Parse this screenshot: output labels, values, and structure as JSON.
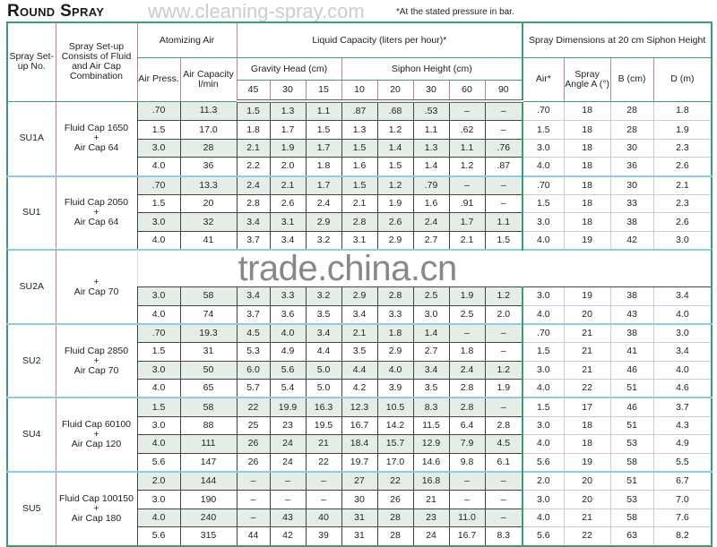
{
  "title": "Round Spray",
  "watermark_top": "www.cleaning-spray.com",
  "watermark_band": "trade.china.cn",
  "note": "*At the stated pressure in bar.",
  "headers": {
    "setup_no": "Spray Set-up No.",
    "combination": "Spray Set-up Consists of Fluid and Air Cap Combination",
    "atomizing_air": "Atomizing Air",
    "liquid_capacity": "Liquid Capacity (liters per hour)*",
    "spray_dimensions": "Spray Dimensions at 20 cm Siphon Height",
    "air_press": "Air Press.",
    "air_capacity": "Air Capacity l/min",
    "gravity_head": "Gravity Head (cm)",
    "siphon_height": "Siphon Height (cm)",
    "air": "Air*",
    "spray_angle": "Spray Angle A (°)",
    "b": "B (cm)",
    "d": "D (m)",
    "gravity_cols": [
      "45",
      "30",
      "15"
    ],
    "siphon_cols": [
      "10",
      "20",
      "30",
      "60",
      "90"
    ]
  },
  "groups": [
    {
      "id": "SU1A",
      "combo": [
        "Fluid Cap 1650",
        "+",
        "Air Cap 64"
      ],
      "rows": [
        [
          ".70",
          "11.3",
          "1.5",
          "1.3",
          "1.1",
          ".87",
          ".68",
          ".53",
          "–",
          "–",
          ".70",
          "18",
          "28",
          "1.8"
        ],
        [
          "1.5",
          "17.0",
          "1.8",
          "1.7",
          "1.5",
          "1.3",
          "1.2",
          "1.1",
          ".62",
          "–",
          "1.5",
          "18",
          "28",
          "1.9"
        ],
        [
          "3.0",
          "28",
          "2.1",
          "1.9",
          "1.7",
          "1.5",
          "1.4",
          "1.3",
          "1.1",
          ".76",
          "3.0",
          "18",
          "30",
          "2.3"
        ],
        [
          "4.0",
          "36",
          "2.2",
          "2.0",
          "1.8",
          "1.6",
          "1.5",
          "1.4",
          "1.2",
          ".87",
          "4.0",
          "18",
          "36",
          "2.6"
        ]
      ]
    },
    {
      "id": "SU1",
      "combo": [
        "Fluid Cap 2050",
        "+",
        "Air Cap 64"
      ],
      "rows": [
        [
          ".70",
          "13.3",
          "2.4",
          "2.1",
          "1.7",
          "1.5",
          "1.2",
          ".79",
          "–",
          "–",
          ".70",
          "18",
          "30",
          "2.1"
        ],
        [
          "1.5",
          "20",
          "2.8",
          "2.6",
          "2.4",
          "2.1",
          "1.9",
          "1.6",
          ".91",
          "–",
          "1.5",
          "18",
          "33",
          "2.3"
        ],
        [
          "3.0",
          "32",
          "3.4",
          "3.1",
          "2.9",
          "2.8",
          "2.6",
          "2.4",
          "1.7",
          "1.1",
          "3.0",
          "18",
          "38",
          "2.6"
        ],
        [
          "4.0",
          "41",
          "3.7",
          "3.4",
          "3.2",
          "3.1",
          "2.9",
          "2.7",
          "2.1",
          "1.5",
          "4.0",
          "19",
          "42",
          "3.0"
        ]
      ]
    },
    {
      "id": "SU2A",
      "combo": [
        "",
        "+",
        "Air Cap 70"
      ],
      "rows": [
        [],
        [],
        [
          "3.0",
          "58",
          "3.4",
          "3.3",
          "3.2",
          "2.9",
          "2.8",
          "2.5",
          "1.9",
          "1.2",
          "3.0",
          "19",
          "38",
          "3.4"
        ],
        [
          "4.0",
          "74",
          "3.7",
          "3.6",
          "3.5",
          "3.4",
          "3.3",
          "3.0",
          "2.5",
          "2.0",
          "4.0",
          "20",
          "43",
          "4.0"
        ]
      ]
    },
    {
      "id": "SU2",
      "combo": [
        "Fluid Cap 2850",
        "+",
        "Air Cap 70"
      ],
      "rows": [
        [
          ".70",
          "19.3",
          "4.5",
          "4.0",
          "3.4",
          "2.1",
          "1.8",
          "1.4",
          "–",
          "–",
          ".70",
          "21",
          "38",
          "3.0"
        ],
        [
          "1.5",
          "31",
          "5.3",
          "4.9",
          "4.4",
          "3.5",
          "2.9",
          "2.7",
          "1.8",
          "–",
          "1.5",
          "21",
          "41",
          "3.4"
        ],
        [
          "3.0",
          "50",
          "6.0",
          "5.6",
          "5.0",
          "4.4",
          "4.0",
          "3.4",
          "2.4",
          "1.2",
          "3.0",
          "21",
          "46",
          "4.0"
        ],
        [
          "4.0",
          "65",
          "5.7",
          "5.4",
          "5.0",
          "4.2",
          "3.9",
          "3.5",
          "2.8",
          "1.9",
          "4.0",
          "22",
          "51",
          "4.6"
        ]
      ]
    },
    {
      "id": "SU4",
      "combo": [
        "Fluid Cap 60100",
        "+",
        "Air Cap 120"
      ],
      "rows": [
        [
          "1.5",
          "58",
          "22",
          "19.9",
          "16.3",
          "12.3",
          "10.5",
          "8.3",
          "2.8",
          "–",
          "1.5",
          "17",
          "46",
          "3.7"
        ],
        [
          "3.0",
          "88",
          "25",
          "23",
          "19.5",
          "16.7",
          "14.2",
          "11.5",
          "6.4",
          "2.8",
          "3.0",
          "18",
          "51",
          "4.3"
        ],
        [
          "4.0",
          "111",
          "26",
          "24",
          "21",
          "18.4",
          "15.7",
          "12.9",
          "7.9",
          "4.5",
          "4.0",
          "18",
          "53",
          "4.9"
        ],
        [
          "5.6",
          "147",
          "26",
          "24",
          "22",
          "19.7",
          "17.0",
          "14.6",
          "9.8",
          "6.1",
          "5.6",
          "19",
          "58",
          "5.5"
        ]
      ]
    },
    {
      "id": "SU5",
      "combo": [
        "Fluid Cap 100150",
        "+",
        "Air Cap 180"
      ],
      "rows": [
        [
          "2.0",
          "144",
          "–",
          "–",
          "–",
          "27",
          "22",
          "16.8",
          "–",
          "–",
          "2.0",
          "20",
          "51",
          "6.7"
        ],
        [
          "3.0",
          "190",
          "–",
          "–",
          "–",
          "30",
          "26",
          "21",
          "–",
          "–",
          "3.0",
          "20",
          "53",
          "7.0"
        ],
        [
          "4.0",
          "240",
          "–",
          "43",
          "40",
          "31",
          "28",
          "23",
          "11.0",
          "–",
          "4.0",
          "21",
          "58",
          "7.6"
        ],
        [
          "5.6",
          "315",
          "44",
          "42",
          "39",
          "31",
          "28",
          "24",
          "16.7",
          "8.3",
          "5.6",
          "22",
          "63",
          "8.2"
        ]
      ]
    }
  ],
  "colors": {
    "border": "#3f9c6e",
    "shade": "#e5eee6",
    "group_separator": "#8fcbe2",
    "left_rule": "#d07a8a"
  }
}
